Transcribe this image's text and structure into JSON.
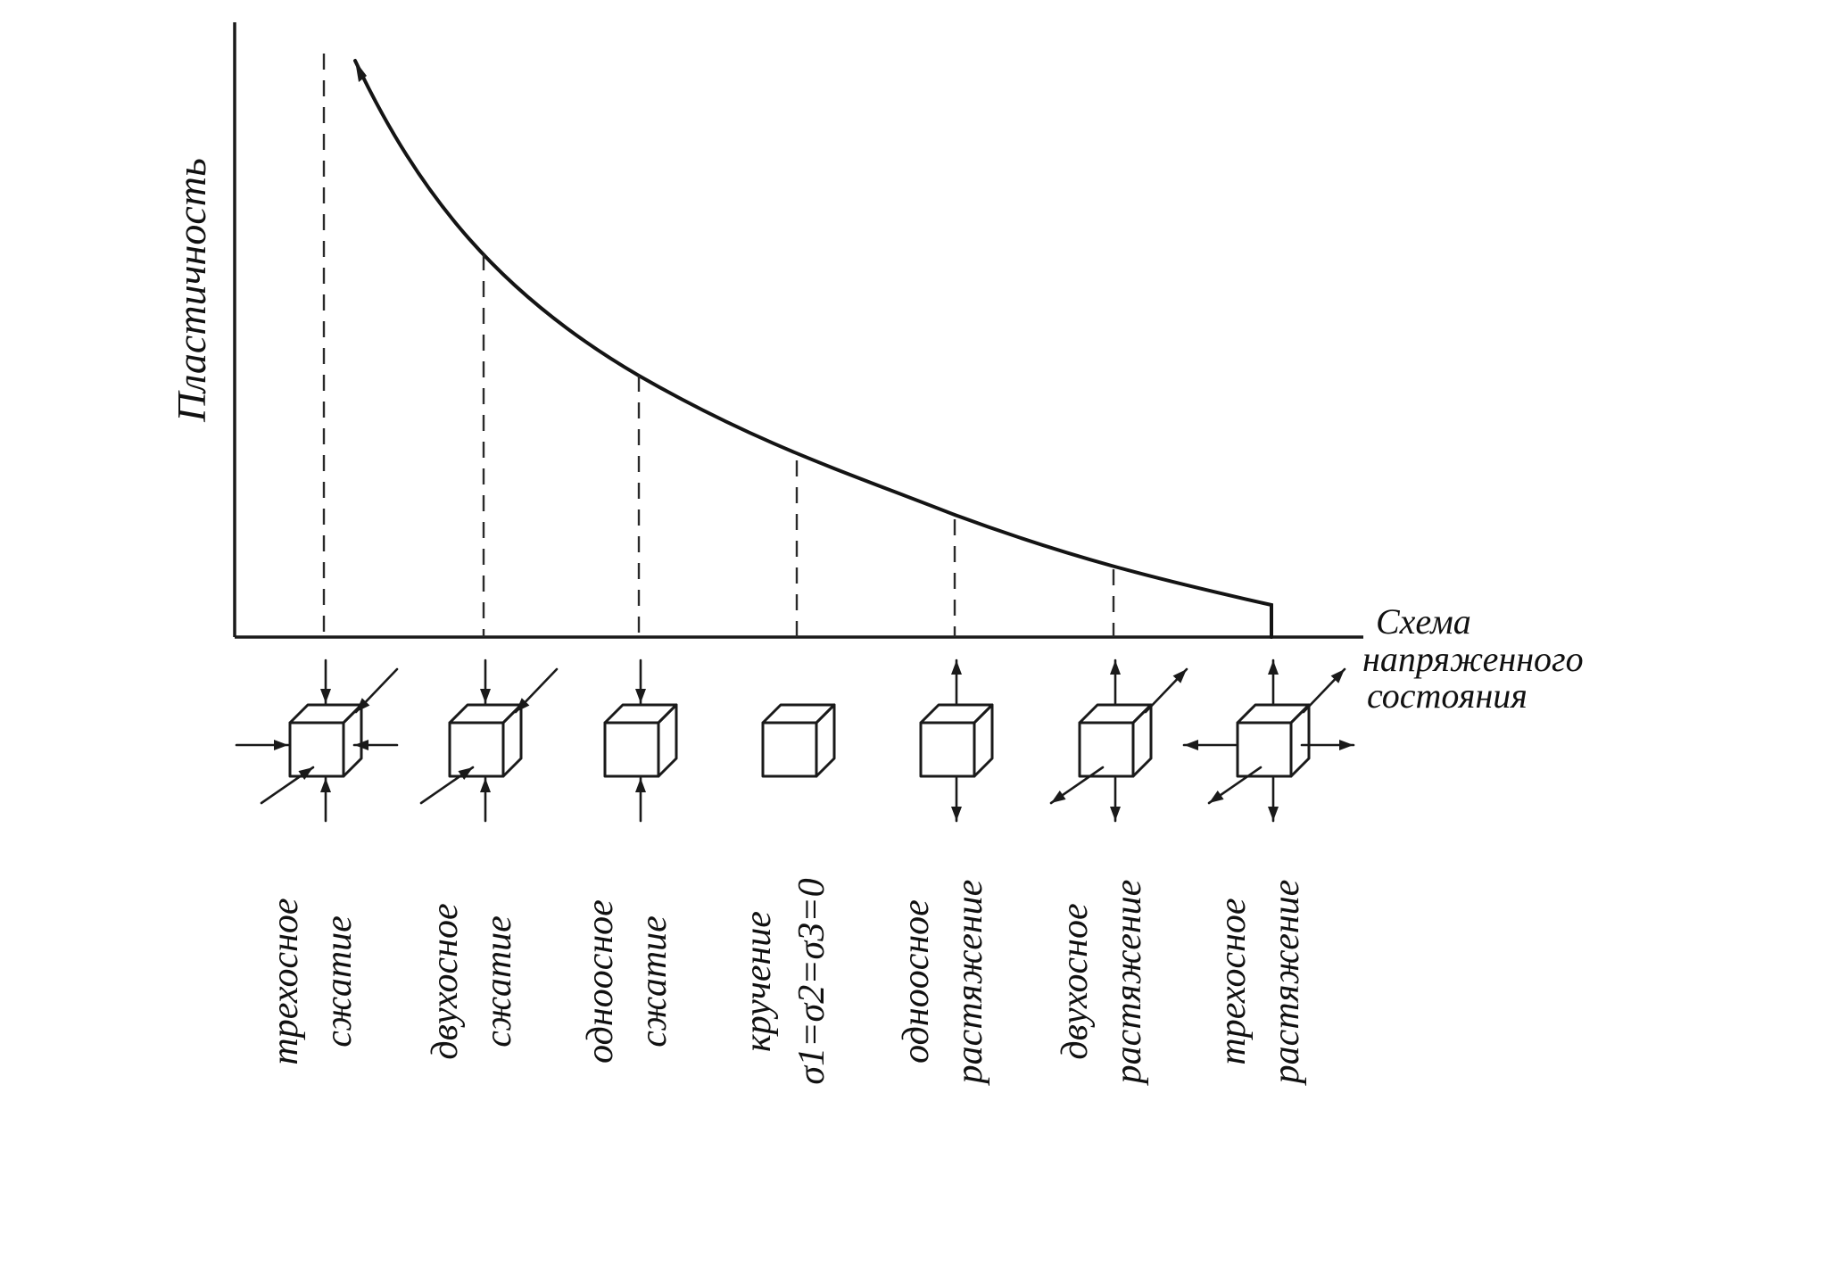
{
  "diagram": {
    "y_axis_label": "Пластичность",
    "x_axis_label_lines": [
      "Схема",
      "напряженного",
      "состояния"
    ],
    "states": [
      {
        "lines": [
          "трехосное",
          "сжатие"
        ],
        "arrows": "triaxial-compression"
      },
      {
        "lines": [
          "двухосное",
          "сжатие"
        ],
        "arrows": "biaxial-compression"
      },
      {
        "lines": [
          "одноосное",
          "сжатие"
        ],
        "arrows": "uniaxial-compression"
      },
      {
        "lines": [
          "кручение",
          "σ1=σ2=σ3=0"
        ],
        "arrows": "none"
      },
      {
        "lines": [
          "одноосное",
          "растяжение"
        ],
        "arrows": "uniaxial-tension"
      },
      {
        "lines": [
          "двухосное",
          "растяжение"
        ],
        "arrows": "biaxial-tension"
      },
      {
        "lines": [
          "трехосное",
          "растяжение"
        ],
        "arrows": "triaxial-tension"
      }
    ]
  },
  "colors": {
    "ink": "#1a1a1a",
    "background": "#ffffff"
  }
}
